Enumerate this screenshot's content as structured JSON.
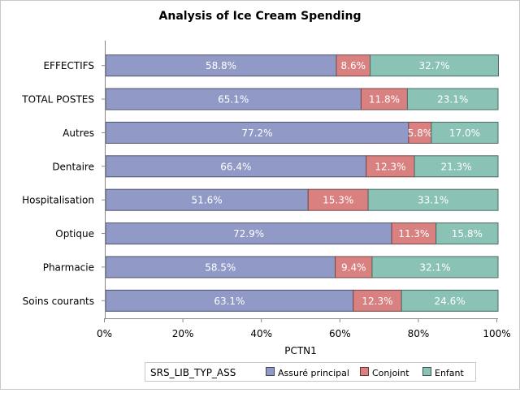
{
  "chart_data": {
    "type": "bar",
    "orientation": "horizontal",
    "stacked": true,
    "title": "Analysis of Ice Cream Spending",
    "xlabel": "PCTN1",
    "ylabel": "",
    "xlim": [
      0,
      100
    ],
    "xticks": [
      "0%",
      "20%",
      "40%",
      "60%",
      "80%",
      "100%"
    ],
    "categories": [
      "EFFECTIFS",
      "TOTAL POSTES",
      "Autres",
      "Dentaire",
      "Hospitalisation",
      "Optique",
      "Pharmacie",
      "Soins courants"
    ],
    "series": [
      {
        "name": "Assuré principal",
        "color": "#9199c7",
        "values": [
          58.8,
          65.1,
          77.2,
          66.4,
          51.6,
          72.9,
          58.5,
          63.1
        ]
      },
      {
        "name": "Conjoint",
        "color": "#d98181",
        "values": [
          8.6,
          11.8,
          5.8,
          12.3,
          15.3,
          11.3,
          9.4,
          12.3
        ]
      },
      {
        "name": "Enfant",
        "color": "#8ac2b6",
        "values": [
          32.7,
          23.1,
          17.0,
          21.3,
          33.1,
          15.8,
          32.1,
          24.6
        ]
      }
    ],
    "legend": {
      "title": "SRS_LIB_TYP_ASS",
      "placement": "bottom"
    },
    "grid": false
  }
}
